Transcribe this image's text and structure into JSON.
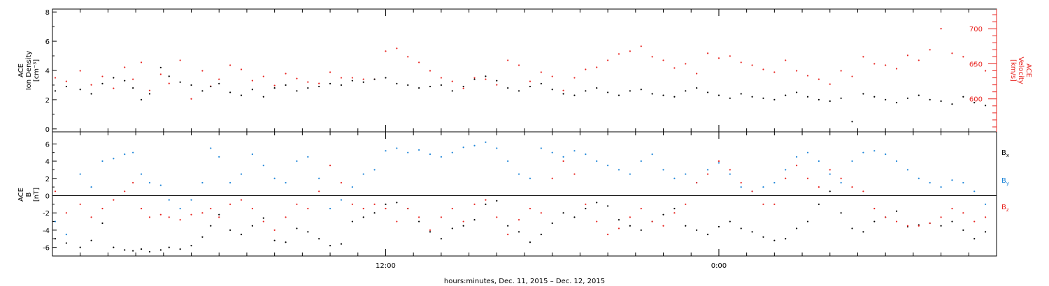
{
  "colors": {
    "black": "#000000",
    "red": "#e8231f",
    "blue": "#1f86d8"
  },
  "chart_data": [
    {
      "type": "scatter",
      "panel": "top",
      "ylabel_left": [
        "ACE",
        "Ion Density",
        "[cm⁻³]"
      ],
      "ylabel_right": [
        "ACE",
        "Velocity",
        "[km/s]"
      ],
      "ylim_left": [
        -0.2,
        8.2
      ],
      "ylim_right": [
        553,
        728
      ],
      "yticks_left": [
        "0",
        "2",
        "4",
        "6",
        "8"
      ],
      "yticks_right": [
        "600",
        "650",
        "700"
      ],
      "xlim_hours": [
        0,
        34
      ],
      "grid": false,
      "series": [
        {
          "color": "red",
          "axis": "right",
          "x": [
            0.1,
            0.5,
            1.0,
            1.4,
            1.8,
            2.2,
            2.6,
            2.9,
            3.2,
            3.5,
            3.9,
            4.2,
            4.6,
            5.0,
            5.4,
            5.7,
            6.0,
            6.4,
            6.8,
            7.2,
            7.6,
            8.0,
            8.4,
            8.8,
            9.2,
            9.6,
            10.0,
            10.4,
            10.8,
            11.2,
            11.6,
            12.0,
            12.4,
            12.8,
            13.2,
            13.6,
            14.0,
            14.4,
            14.8,
            15.2,
            15.6,
            16.0,
            16.4,
            16.8,
            17.2,
            17.6,
            18.0,
            18.4,
            18.8,
            19.2,
            19.6,
            20.0,
            20.4,
            20.8,
            21.2,
            21.6,
            22.0,
            22.4,
            22.8,
            23.2,
            23.6,
            24.0,
            24.4,
            24.8,
            25.2,
            25.6,
            26.0,
            26.4,
            26.8,
            27.2,
            27.6,
            28.0,
            28.4,
            28.8,
            29.2,
            29.6,
            30.0,
            30.4,
            30.8,
            31.2,
            31.6,
            32.0,
            32.4,
            32.8,
            33.2,
            33.6
          ],
          "y": [
            630,
            625,
            640,
            620,
            632,
            615,
            645,
            628,
            652,
            612,
            635,
            622,
            655,
            600,
            640,
            618,
            628,
            648,
            642,
            626,
            632,
            619,
            636,
            629,
            624,
            622,
            638,
            630,
            630,
            628,
            628,
            668,
            672,
            660,
            652,
            640,
            630,
            625,
            615,
            630,
            628,
            620,
            655,
            648,
            625,
            638,
            632,
            612,
            630,
            642,
            645,
            655,
            664,
            668,
            675,
            660,
            655,
            644,
            650,
            636,
            665,
            658,
            661,
            652,
            648,
            642,
            638,
            655,
            640,
            633,
            628,
            621,
            640,
            632,
            660,
            650,
            648,
            643,
            662,
            655,
            670,
            700,
            665,
            660,
            650,
            640
          ]
        },
        {
          "color": "black",
          "axis": "left",
          "x": [
            0.1,
            0.5,
            1.0,
            1.4,
            1.8,
            2.2,
            2.6,
            2.9,
            3.2,
            3.5,
            3.9,
            4.2,
            4.6,
            5.0,
            5.4,
            5.7,
            6.0,
            6.4,
            6.8,
            7.2,
            7.6,
            8.0,
            8.4,
            8.8,
            9.2,
            9.6,
            10.0,
            10.4,
            10.8,
            11.2,
            11.6,
            12.0,
            12.4,
            12.8,
            13.2,
            13.6,
            14.0,
            14.4,
            14.8,
            15.2,
            15.6,
            16.0,
            16.4,
            16.8,
            17.2,
            17.6,
            18.0,
            18.4,
            18.8,
            19.2,
            19.6,
            20.0,
            20.4,
            20.8,
            21.2,
            21.6,
            22.0,
            22.4,
            22.8,
            23.2,
            23.6,
            24.0,
            24.4,
            24.8,
            25.2,
            25.6,
            26.0,
            26.4,
            26.8,
            27.2,
            27.6,
            28.0,
            28.4,
            28.8,
            29.2,
            29.6,
            30.0,
            30.4,
            30.8,
            31.2,
            31.6,
            32.0,
            32.4,
            32.8,
            33.2,
            33.6
          ],
          "y": [
            2.6,
            2.9,
            2.7,
            2.4,
            3.1,
            3.5,
            3.3,
            2.8,
            2.0,
            2.4,
            4.2,
            3.6,
            3.2,
            3.0,
            2.6,
            2.9,
            3.1,
            2.5,
            2.3,
            2.7,
            2.2,
            2.8,
            3.0,
            2.6,
            2.8,
            2.9,
            3.1,
            3.0,
            3.3,
            3.2,
            3.4,
            3.5,
            3.1,
            3.0,
            2.8,
            2.9,
            3.0,
            2.6,
            2.9,
            3.4,
            3.6,
            3.3,
            2.8,
            2.6,
            2.9,
            3.1,
            2.7,
            2.4,
            2.3,
            2.6,
            2.8,
            2.5,
            2.3,
            2.6,
            2.7,
            2.4,
            2.3,
            2.2,
            2.6,
            2.8,
            2.5,
            2.3,
            2.1,
            2.4,
            2.2,
            2.1,
            2.0,
            2.3,
            2.5,
            2.2,
            2.0,
            1.9,
            2.1,
            0.5,
            2.4,
            2.2,
            2.0,
            1.8,
            2.1,
            2.3,
            2.0,
            1.9,
            1.7,
            2.2,
            1.8,
            1.6
          ]
        }
      ]
    },
    {
      "type": "scatter",
      "panel": "bottom",
      "ylabel_left": [
        "ACE",
        "B",
        "[nT]"
      ],
      "ylim": [
        -7,
        7.4
      ],
      "yticks": [
        "-6",
        "-4",
        "-2",
        "0",
        "2",
        "4",
        "6"
      ],
      "xlim_hours": [
        0,
        34
      ],
      "grid": false,
      "zero_line": true,
      "legend": [
        {
          "label": "B",
          "sub": "x",
          "color": "black"
        },
        {
          "label": "B",
          "sub": "y",
          "color": "blue"
        },
        {
          "label": "B",
          "sub": "z",
          "color": "red"
        }
      ],
      "series": [
        {
          "name": "Bx",
          "color": "black",
          "x": [
            0.1,
            0.5,
            1.0,
            1.4,
            1.8,
            2.2,
            2.6,
            2.9,
            3.2,
            3.5,
            3.9,
            4.2,
            4.6,
            5.0,
            5.4,
            5.7,
            6.0,
            6.4,
            6.8,
            7.2,
            7.6,
            8.0,
            8.4,
            8.8,
            9.2,
            9.6,
            10.0,
            10.4,
            10.8,
            11.2,
            11.6,
            12.0,
            12.4,
            12.8,
            13.2,
            13.6,
            14.0,
            14.4,
            14.8,
            15.2,
            15.6,
            16.0,
            16.4,
            16.8,
            17.2,
            17.6,
            18.0,
            18.4,
            18.8,
            19.2,
            19.6,
            20.0,
            20.4,
            20.8,
            21.2,
            21.6,
            22.0,
            22.4,
            22.8,
            23.2,
            23.6,
            24.0,
            24.4,
            24.8,
            25.2,
            25.6,
            26.0,
            26.4,
            26.8,
            27.2,
            27.6,
            28.0,
            28.4,
            28.8,
            29.2,
            29.6,
            30.0,
            30.4,
            30.8,
            31.2,
            31.6,
            32.0,
            32.4,
            32.8,
            33.2,
            33.6
          ],
          "y": [
            -5.0,
            -5.5,
            -6.0,
            -5.2,
            -3.2,
            -6.0,
            -6.3,
            -6.4,
            -6.2,
            -6.5,
            -6.3,
            -6.0,
            -6.2,
            -5.8,
            -4.8,
            -3.5,
            -2.2,
            -4.0,
            -4.5,
            -3.5,
            -2.6,
            -5.2,
            -5.4,
            -3.8,
            -4.2,
            -5.0,
            -5.8,
            -5.6,
            -3.0,
            -2.5,
            -2.0,
            -1.0,
            -0.8,
            -1.5,
            -3.0,
            -4.2,
            -5.0,
            -3.8,
            -3.5,
            -2.8,
            -1.0,
            -0.6,
            -3.5,
            -4.2,
            -5.4,
            -4.5,
            -3.2,
            -2.0,
            -2.5,
            -1.5,
            -0.8,
            -1.2,
            -2.8,
            -3.5,
            -4.0,
            -3.0,
            -2.2,
            -1.5,
            -3.5,
            -4.0,
            -4.5,
            -3.6,
            -3.0,
            -3.8,
            -4.2,
            -4.8,
            -5.2,
            -5.0,
            -3.8,
            -3.0,
            -1.0,
            0.5,
            -2.0,
            -3.8,
            -4.2,
            -3.0,
            -2.5,
            -1.8,
            -3.6,
            -3.4,
            -3.2,
            -3.5,
            -3.0,
            -4.0,
            -5.0,
            -4.2
          ]
        },
        {
          "name": "By",
          "color": "blue",
          "x": [
            0.1,
            0.5,
            1.0,
            1.4,
            1.8,
            2.2,
            2.6,
            2.9,
            3.2,
            3.5,
            3.9,
            4.2,
            4.6,
            5.0,
            5.4,
            5.7,
            6.0,
            6.4,
            6.8,
            7.2,
            7.6,
            8.0,
            8.4,
            8.8,
            9.2,
            9.6,
            10.0,
            10.4,
            10.8,
            11.2,
            11.6,
            12.0,
            12.4,
            12.8,
            13.2,
            13.6,
            14.0,
            14.4,
            14.8,
            15.2,
            15.6,
            16.0,
            16.4,
            16.8,
            17.2,
            17.6,
            18.0,
            18.4,
            18.8,
            19.2,
            19.6,
            20.0,
            20.4,
            20.8,
            21.2,
            21.6,
            22.0,
            22.4,
            22.8,
            23.2,
            23.6,
            24.0,
            24.4,
            24.8,
            25.2,
            25.6,
            26.0,
            26.4,
            26.8,
            27.2,
            27.6,
            28.0,
            28.4,
            28.8,
            29.2,
            29.6,
            30.0,
            30.4,
            30.8,
            31.2,
            31.6,
            32.0,
            32.4,
            32.8,
            33.2,
            33.6
          ],
          "y": [
            -3.0,
            -4.5,
            2.5,
            1.0,
            4.0,
            4.3,
            4.8,
            5.0,
            2.5,
            1.5,
            1.2,
            -0.5,
            -1.5,
            -0.5,
            1.5,
            5.5,
            4.5,
            1.5,
            2.5,
            4.8,
            3.5,
            2.0,
            1.5,
            4.0,
            4.5,
            2.0,
            -1.5,
            -0.5,
            1.0,
            2.5,
            3.0,
            5.2,
            5.5,
            5.0,
            5.3,
            4.8,
            4.5,
            5.0,
            5.6,
            5.8,
            6.2,
            5.5,
            4.0,
            2.5,
            2.0,
            5.5,
            5.0,
            4.5,
            5.2,
            4.8,
            4.0,
            3.5,
            3.0,
            2.5,
            4.0,
            4.8,
            3.0,
            2.0,
            2.5,
            1.5,
            3.0,
            3.8,
            2.5,
            1.0,
            0.5,
            1.0,
            1.5,
            3.0,
            4.5,
            5.0,
            4.0,
            2.5,
            1.5,
            4.0,
            5.0,
            5.2,
            4.8,
            4.0,
            3.0,
            2.0,
            1.5,
            1.0,
            1.8,
            1.5,
            0.5,
            -1.0
          ]
        },
        {
          "name": "Bz",
          "color": "red",
          "x": [
            0.1,
            0.5,
            1.0,
            1.4,
            1.8,
            2.2,
            2.6,
            2.9,
            3.2,
            3.5,
            3.9,
            4.2,
            4.6,
            5.0,
            5.4,
            5.7,
            6.0,
            6.4,
            6.8,
            7.2,
            7.6,
            8.0,
            8.4,
            8.8,
            9.2,
            9.6,
            10.0,
            10.4,
            10.8,
            11.2,
            11.6,
            12.0,
            12.4,
            12.8,
            13.2,
            13.6,
            14.0,
            14.4,
            14.8,
            15.2,
            15.6,
            16.0,
            16.4,
            16.8,
            17.2,
            17.6,
            18.0,
            18.4,
            18.8,
            19.2,
            19.6,
            20.0,
            20.4,
            20.8,
            21.2,
            21.6,
            22.0,
            22.4,
            22.8,
            23.2,
            23.6,
            24.0,
            24.4,
            24.8,
            25.2,
            25.6,
            26.0,
            26.4,
            26.8,
            27.2,
            27.6,
            28.0,
            28.4,
            28.8,
            29.2,
            29.6,
            30.0,
            30.4,
            30.8,
            31.2,
            31.6,
            32.0,
            32.4,
            32.8,
            33.2,
            33.6
          ],
          "y": [
            0.5,
            -2.0,
            -1.0,
            -2.5,
            -1.5,
            -0.5,
            0.5,
            1.5,
            -1.5,
            -2.5,
            -2.2,
            -2.5,
            -2.8,
            -2.2,
            -2.0,
            -1.5,
            -2.5,
            -1.0,
            -0.5,
            -1.5,
            -3.0,
            -4.0,
            -2.5,
            -1.0,
            -1.5,
            0.5,
            3.5,
            1.5,
            -1.0,
            -1.5,
            -1.0,
            -1.5,
            -3.0,
            -1.5,
            -2.5,
            -4.0,
            -2.5,
            -1.5,
            -3.0,
            -1.0,
            -0.5,
            -2.5,
            -4.5,
            -2.8,
            -1.5,
            -2.0,
            2.0,
            4.0,
            2.5,
            -1.0,
            -3.0,
            -4.5,
            -3.8,
            -2.5,
            -1.5,
            -3.0,
            -3.5,
            -2.0,
            -1.0,
            1.5,
            2.5,
            4.0,
            3.0,
            1.5,
            0.5,
            -1.0,
            -1.0,
            2.0,
            3.5,
            2.0,
            1.0,
            3.0,
            2.0,
            1.0,
            0.5,
            -1.5,
            -2.5,
            -3.0,
            -3.5,
            -3.5,
            -3.2,
            -2.5,
            -1.5,
            -2.0,
            -3.0,
            -2.5
          ]
        }
      ]
    }
  ],
  "x_axis": {
    "ticks": [
      {
        "hour": 12,
        "label": "12:00"
      },
      {
        "hour": 24,
        "label": "0:00"
      }
    ],
    "title": "hours:minutes, Dec. 11, 2015 – Dec. 12, 2015"
  }
}
